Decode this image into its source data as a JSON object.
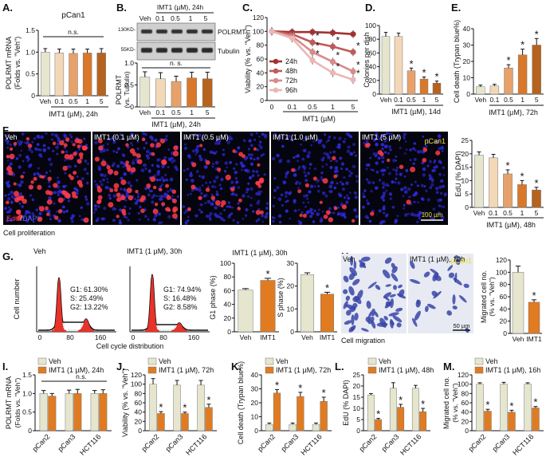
{
  "colors": {
    "veh": "#e6e6cf",
    "d01": "#f3d8b8",
    "d05": "#e6a26a",
    "d1": "#d9782a",
    "d5": "#b5631e",
    "imt1": "#e07b22",
    "l24": "#a23232",
    "l48": "#c05a5a",
    "l72": "#d88b8b",
    "l96": "#ebb6b6",
    "red": "#e8322a",
    "blue": "#2030c0",
    "yellowLabel": "#f0e020"
  },
  "panel_letters": [
    "A.",
    "B.",
    "C.",
    "D.",
    "E.",
    "F.",
    "G.",
    "H.",
    "I.",
    "J.",
    "K.",
    "L.",
    "M."
  ],
  "panels": {
    "A": {
      "title": "pCan1",
      "ylabel": "POLRMT mRNA",
      "ylabel2": "(Folds vs. \"Veh\")",
      "ns": "n.s.",
      "cond": "IMT1 (µM), 24h",
      "ticks": [
        "0",
        "0.5",
        "1.0",
        "1.5"
      ]
    },
    "B": {
      "cond_top": "IMT1 (µM), 24h",
      "wb_labels": [
        "POLRMT",
        "Tubulin"
      ],
      "kda": [
        "130KD-",
        "55KD-"
      ],
      "ylabel": "POLRMT",
      "ylabel2": "(vs. Tubulin)",
      "ns": "n. s.",
      "cond": "IMT1 (µM), 24h",
      "ticks": [
        "0",
        "0.5",
        "1.0"
      ]
    },
    "C": {
      "ylabel": "Viability (% vs. \"Veh\")",
      "cond": "IMT1 (µM)",
      "ticks": [
        "0",
        "20",
        "40",
        "60",
        "80",
        "100",
        "120"
      ]
    },
    "D": {
      "ylabel": "Colonies per dish",
      "cond": "IMT1 (µM), 14d",
      "ticks": [
        "0",
        "20",
        "40",
        "60",
        "80",
        "100"
      ]
    },
    "E": {
      "ylabel": "Cell death (Trypan blue%)",
      "cond": "IMT1 (µM), 72h",
      "ticks": [
        "0",
        "10",
        "20",
        "30",
        "40"
      ]
    },
    "F": {
      "image_labels": [
        "Veh",
        "IMT1 (0.1 µM)",
        "IMT1 (0.5 µM)",
        "IMT1 (1.0 µM)",
        "IMT1 (5 µM)"
      ],
      "cell_label": "pCan1",
      "stain_edu": "EdU",
      "stain_sep": "/",
      "stain_dapi": "DAPI",
      "scale": "100 µm",
      "caption": "Cell proliferation",
      "ylabel": "EdU (% DAPI)",
      "cond": "IMT1 (µM), 48h",
      "ticks": [
        "0",
        "5",
        "10",
        "15",
        "20",
        "25"
      ]
    },
    "G": {
      "hist_titles": [
        "Veh",
        "IMT1 (1 µM), 30h"
      ],
      "veh_stats": [
        "G1: 61.30%",
        "S: 25.49%",
        "G2: 13.22%"
      ],
      "imt_stats": [
        "G1: 74.94%",
        "S: 16.48%",
        "G2: 8.58%"
      ],
      "hist_ylabel": "Cell number",
      "hist_xticks": [
        "0",
        "80",
        "160"
      ],
      "caption": "Cell cycle distribution",
      "bar_title": "IMT1 (1 µM), 30h",
      "g1_ylabel": "G1 phase (%)",
      "s_ylabel": "S phase (%)",
      "g1_ticks": [
        "0",
        "20",
        "40",
        "60",
        "80",
        "100"
      ],
      "s_ticks": [
        "0",
        "10",
        "20",
        "30"
      ]
    },
    "H": {
      "image_labels": [
        "Veh",
        "IMT1 (1 µM), 16h"
      ],
      "cell_label": "pCan1",
      "scale": "50 µm",
      "caption": "Cell migration",
      "ylabel": "Migrated cell no.",
      "ylabel2": "(% vs. \"Veh\")",
      "ticks": [
        "0",
        "20",
        "40",
        "60",
        "80",
        "100",
        "120"
      ]
    },
    "I": {
      "ylabel": "POLRMT mRNA",
      "ylabel2": "(Folds vs. \"Veh\")",
      "legend": [
        "Veh",
        "IMT1 (1 µM), 24h"
      ],
      "ns": "n.s.",
      "ticks": [
        "0",
        "0.5",
        "1.0",
        "1.5"
      ]
    },
    "J": {
      "ylabel": "Viability (% vs. \"Veh\")",
      "legend": [
        "Veh",
        "IMT1 (1 µM), 72h"
      ],
      "ticks": [
        "0",
        "20",
        "40",
        "60",
        "80",
        "100",
        "120"
      ]
    },
    "K": {
      "ylabel": "Cell death (Trypan blue%)",
      "legend": [
        "Veh",
        "IMT1 (1 µM), 72h"
      ],
      "ticks": [
        "0",
        "10",
        "20",
        "30",
        "40"
      ]
    },
    "L": {
      "ylabel": "EdU (% DAPI)",
      "legend": [
        "Veh",
        "IMT1 (1 µM), 48h"
      ],
      "ticks": [
        "0",
        "5",
        "10",
        "15",
        "20",
        "25"
      ]
    },
    "M": {
      "ylabel": "Migrated cell no.",
      "ylabel2": "(% vs. \"Veh\")",
      "legend": [
        "Veh",
        "IMT1 (1 µM), 16h"
      ],
      "ticks": [
        "0",
        "20",
        "40",
        "60",
        "80",
        "100",
        "120"
      ]
    }
  },
  "chart_data": [
    {
      "id": "A",
      "type": "bar",
      "categories": [
        "Veh",
        "0.1",
        "0.5",
        "1",
        "5"
      ],
      "values": [
        1.0,
        0.98,
        0.97,
        0.98,
        0.98
      ],
      "errors": [
        0.08,
        0.09,
        0.1,
        0.09,
        0.1
      ],
      "ylim": [
        0,
        1.5
      ],
      "sig": [
        "",
        "",
        "",
        "",
        ""
      ]
    },
    {
      "id": "B",
      "type": "bar",
      "categories": [
        "Veh",
        "0.1",
        "0.5",
        "1",
        "5"
      ],
      "values": [
        0.68,
        0.64,
        0.58,
        0.66,
        0.64
      ],
      "errors": [
        0.12,
        0.14,
        0.12,
        0.13,
        0.15
      ],
      "ylim": [
        0,
        1.0
      ],
      "sig": [
        "",
        "",
        "",
        "",
        ""
      ]
    },
    {
      "id": "C",
      "type": "line",
      "x": [
        "0",
        "0.1",
        "0.5",
        "1",
        "5"
      ],
      "series": [
        {
          "name": "24h",
          "values": [
            100,
            99,
            99,
            98,
            96
          ]
        },
        {
          "name": "48h",
          "values": [
            100,
            96,
            84,
            78,
            70
          ]
        },
        {
          "name": "72h",
          "values": [
            100,
            93,
            70,
            56,
            42
          ]
        },
        {
          "name": "96h",
          "values": [
            100,
            90,
            58,
            40,
            30
          ]
        }
      ],
      "ylim": [
        0,
        120
      ]
    },
    {
      "id": "D",
      "type": "bar",
      "categories": [
        "Veh",
        "0.1",
        "0.5",
        "1",
        "5"
      ],
      "values": [
        84,
        84,
        34,
        22,
        16
      ],
      "errors": [
        6,
        5,
        4,
        3,
        3
      ],
      "ylim": [
        0,
        100
      ],
      "sig": [
        "",
        "",
        "*",
        "*",
        "*"
      ]
    },
    {
      "id": "E",
      "type": "bar",
      "categories": [
        "Veh",
        "0.1",
        "0.5",
        "1",
        "5"
      ],
      "values": [
        4.5,
        5,
        16,
        24,
        30
      ],
      "errors": [
        1,
        1,
        2,
        3.5,
        4
      ],
      "ylim": [
        0,
        40
      ],
      "sig": [
        "",
        "",
        "*",
        "*",
        "*"
      ]
    },
    {
      "id": "F",
      "type": "bar",
      "categories": [
        "Veh",
        "0.1",
        "0.5",
        "1",
        "5"
      ],
      "values": [
        19.5,
        18.5,
        12.5,
        8.5,
        6.5
      ],
      "errors": [
        1.2,
        1.3,
        1.5,
        1.5,
        1.0
      ],
      "ylim": [
        0,
        25
      ],
      "sig": [
        "",
        "",
        "*",
        "*",
        "*"
      ]
    },
    {
      "id": "G1",
      "type": "bar",
      "categories": [
        "Veh",
        "IMT1"
      ],
      "values": [
        61,
        75
      ],
      "errors": [
        2,
        3
      ],
      "ylim": [
        0,
        100
      ],
      "sig": [
        "",
        "*"
      ]
    },
    {
      "id": "GS",
      "type": "bar",
      "categories": [
        "Veh",
        "IMT1"
      ],
      "values": [
        25,
        16.5
      ],
      "errors": [
        0.8,
        0.8
      ],
      "ylim": [
        0,
        30
      ],
      "sig": [
        "",
        "*"
      ]
    },
    {
      "id": "H",
      "type": "bar",
      "categories": [
        "Veh",
        "IMT1"
      ],
      "values": [
        100,
        51
      ],
      "errors": [
        10,
        4
      ],
      "ylim": [
        0,
        120
      ],
      "sig": [
        "",
        "*"
      ]
    },
    {
      "id": "I",
      "type": "bar",
      "categories": [
        "pCan2",
        "pCan3",
        "HCT116"
      ],
      "series": [
        {
          "name": "Veh",
          "values": [
            1.0,
            1.0,
            1.0
          ]
        },
        {
          "name": "IMT1 (1 µM), 24h",
          "values": [
            0.93,
            1.0,
            1.0
          ]
        }
      ],
      "errors": [
        [
          0.08,
          0.09,
          0.08
        ],
        [
          0.07,
          0.11,
          0.1
        ]
      ],
      "ylim": [
        0,
        1.5
      ],
      "sig": [
        [
          "",
          "",
          ""
        ],
        [
          "",
          "",
          ""
        ]
      ]
    },
    {
      "id": "J",
      "type": "bar",
      "categories": [
        "pCan2",
        "pCan3",
        "HCT116"
      ],
      "series": [
        {
          "name": "Veh",
          "values": [
            100,
            98,
            98
          ]
        },
        {
          "name": "IMT1 (1 µM), 72h",
          "values": [
            37,
            37,
            50
          ]
        }
      ],
      "errors": [
        [
          12,
          10,
          10
        ],
        [
          4,
          3,
          7
        ]
      ],
      "ylim": [
        0,
        120
      ],
      "sig": [
        [
          "",
          "",
          ""
        ],
        [
          "*",
          "*",
          "*"
        ]
      ]
    },
    {
      "id": "K",
      "type": "bar",
      "categories": [
        "pCan2",
        "pCan3",
        "HCT116"
      ],
      "series": [
        {
          "name": "Veh",
          "values": [
            4.5,
            4.5,
            4.5
          ]
        },
        {
          "name": "IMT1 (1 µM), 72h",
          "values": [
            27,
            24.5,
            21
          ]
        }
      ],
      "errors": [
        [
          1,
          1,
          1
        ],
        [
          2.5,
          3,
          3
        ]
      ],
      "ylim": [
        0,
        40
      ],
      "sig": [
        [
          "",
          "",
          ""
        ],
        [
          "*",
          "*",
          "*"
        ]
      ]
    },
    {
      "id": "L",
      "type": "bar",
      "categories": [
        "pCan2",
        "pCan3",
        "HCT116"
      ],
      "series": [
        {
          "name": "Veh",
          "values": [
            16,
            19,
            19
          ]
        },
        {
          "name": "IMT1 (1 µM), 48h",
          "values": [
            5,
            10.5,
            8.5
          ]
        }
      ],
      "errors": [
        [
          0.6,
          2.5,
          1.3
        ],
        [
          0.5,
          1.3,
          1.5
        ]
      ],
      "ylim": [
        0,
        25
      ],
      "sig": [
        [
          "",
          "",
          ""
        ],
        [
          "*",
          "*",
          "*"
        ]
      ]
    },
    {
      "id": "M",
      "type": "bar",
      "categories": [
        "pCan2",
        "pCan3",
        "HCT116"
      ],
      "series": [
        {
          "name": "Veh",
          "values": [
            100,
            100,
            100
          ]
        },
        {
          "name": "IMT1 (1 µM), 16h",
          "values": [
            42,
            40,
            49
          ]
        }
      ],
      "errors": [
        [
          3,
          4,
          3
        ],
        [
          4,
          4,
          3
        ]
      ],
      "ylim": [
        0,
        120
      ],
      "sig": [
        [
          "",
          "",
          ""
        ],
        [
          "*",
          "*",
          "*"
        ]
      ]
    }
  ]
}
